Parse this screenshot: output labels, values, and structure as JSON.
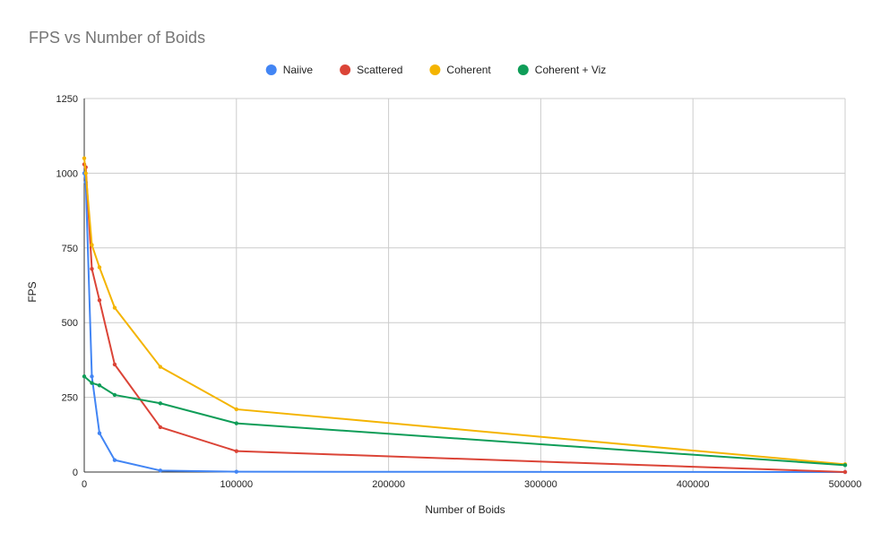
{
  "chart_data": {
    "type": "line",
    "title": "FPS vs Number of Boids",
    "xlabel": "Number of Boids",
    "ylabel": "FPS",
    "xlim": [
      0,
      500000
    ],
    "ylim": [
      0,
      1250
    ],
    "x_ticks": [
      0,
      100000,
      200000,
      300000,
      400000,
      500000
    ],
    "y_ticks": [
      0,
      250,
      500,
      750,
      1000,
      1250
    ],
    "x_tick_labels": [
      "0",
      "100000",
      "200000",
      "300000",
      "400000",
      "500000"
    ],
    "y_tick_labels": [
      "0",
      "250",
      "500",
      "750",
      "1000",
      "1250"
    ],
    "grid": true,
    "legend_position": "top",
    "series": [
      {
        "name": "Naiive",
        "color": "#4285f4",
        "x": [
          0,
          1000,
          5000,
          10000,
          20000,
          50000,
          100000,
          500000
        ],
        "y": [
          1000,
          970,
          320,
          130,
          40,
          5,
          1,
          0
        ]
      },
      {
        "name": "Scattered",
        "color": "#db4437",
        "x": [
          0,
          1000,
          5000,
          10000,
          20000,
          50000,
          100000,
          500000
        ],
        "y": [
          1030,
          1020,
          680,
          575,
          360,
          150,
          70,
          0
        ]
      },
      {
        "name": "Coherent",
        "color": "#f4b400",
        "x": [
          0,
          1000,
          5000,
          10000,
          20000,
          50000,
          100000,
          500000
        ],
        "y": [
          1050,
          1000,
          760,
          685,
          550,
          352,
          210,
          26
        ]
      },
      {
        "name": "Coherent + Viz",
        "color": "#0f9d58",
        "x": [
          0,
          5000,
          10000,
          20000,
          50000,
          100000,
          500000
        ],
        "y": [
          320,
          298,
          290,
          258,
          230,
          163,
          23
        ]
      }
    ]
  }
}
